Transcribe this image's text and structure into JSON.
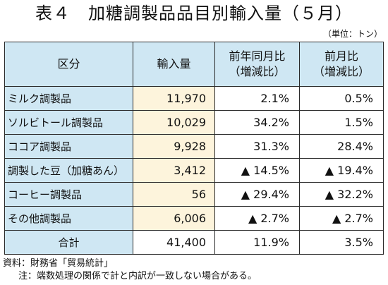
{
  "title": "表４　加糖調製品品目別輸入量（５月）",
  "unit": "（単位：トン）",
  "headers": {
    "category": "区分",
    "imports": "輸入量",
    "yoy_line1": "前年同月比",
    "yoy_line2": "（増減比）",
    "mom_line1": "前月比",
    "mom_line2": "（増減比）"
  },
  "rows": [
    {
      "name": "ミルク調製品",
      "imports": "11,970",
      "yoy": "2.1%",
      "mom": "0.5%"
    },
    {
      "name": "ソルビトール調製品",
      "imports": "10,029",
      "yoy": "34.2%",
      "mom": "1.5%"
    },
    {
      "name": "ココア調製品",
      "imports": "9,928",
      "yoy": "31.3%",
      "mom": "28.4%"
    },
    {
      "name": "調製した豆（加糖あん）",
      "imports": "3,412",
      "yoy": "▲ 14.5%",
      "mom": "▲ 19.4%"
    },
    {
      "name": "コーヒー調製品",
      "imports": "56",
      "yoy": "▲ 29.4%",
      "mom": "▲ 32.2%"
    },
    {
      "name": "その他調製品",
      "imports": "6,006",
      "yoy": "▲ 2.7%",
      "mom": "▲ 2.7%"
    }
  ],
  "total": {
    "name": "合計",
    "imports": "41,400",
    "yoy": "11.9%",
    "mom": "3.5%"
  },
  "source": "資料：財務省「貿易統計」",
  "note": "注：端数処理の関係で計と内訳が一致しない場合がある。"
}
